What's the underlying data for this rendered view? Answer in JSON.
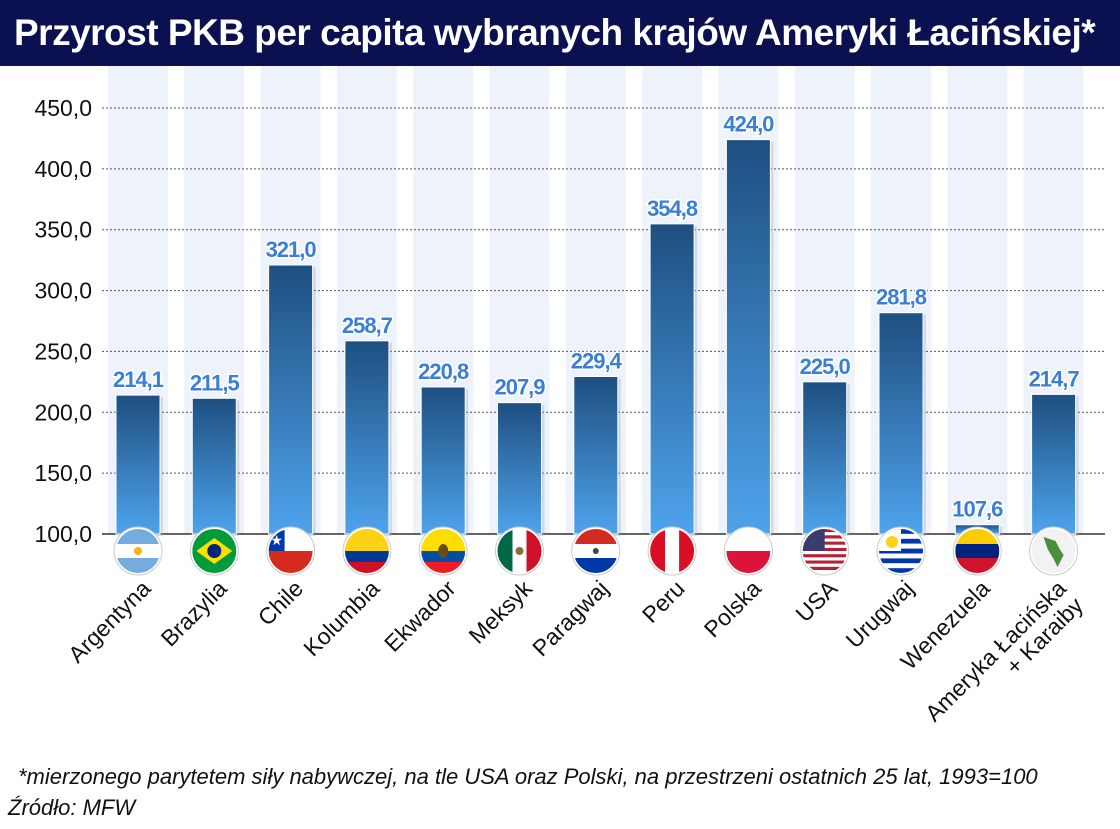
{
  "title": "Przyrost PKB per capita wybranych krajów Ameryki Łacińskiej*",
  "footnote": "*mierzonego parytetem siły nabywczej, na tle USA oraz Polski, na przestrzeni ostatnich 25 lat, 1993=100",
  "source": "Źródło: MFW",
  "chart_data": {
    "type": "bar",
    "title": "Przyrost PKB per capita wybranych krajów Ameryki Łacińskiej*",
    "categories": [
      "Argentyna",
      "Brazylia",
      "Chile",
      "Kolumbia",
      "Ekwador",
      "Meksyk",
      "Paragwaj",
      "Peru",
      "Polska",
      "USA",
      "Urugwaj",
      "Wenezuela",
      "Ameryka Łacińska + Karaiby"
    ],
    "values": [
      214.1,
      211.5,
      321.0,
      258.7,
      220.8,
      207.9,
      229.4,
      354.8,
      424.0,
      225.0,
      281.8,
      107.6,
      214.7
    ],
    "value_labels": [
      "214,1",
      "211,5",
      "321,0",
      "258,7",
      "220,8",
      "207,9",
      "229,4",
      "354,8",
      "424,0",
      "225,0",
      "281,8",
      "107,6",
      "214,7"
    ],
    "flags": [
      "argentina",
      "brazil",
      "chile",
      "colombia",
      "ecuador",
      "mexico",
      "paraguay",
      "peru",
      "poland",
      "usa",
      "uruguay",
      "venezuela",
      "latin-america-map"
    ],
    "ylim": [
      100,
      450
    ],
    "yticks": [
      "100,0",
      "150,0",
      "200,0",
      "250,0",
      "300,0",
      "350,0",
      "400,0",
      "450,0"
    ],
    "grid": true,
    "colors": {
      "bar_top": "#1e4f80",
      "bar_bottom": "#4ea3ec",
      "label": "#3a7fd5",
      "title_bg": "#0b1150"
    }
  }
}
